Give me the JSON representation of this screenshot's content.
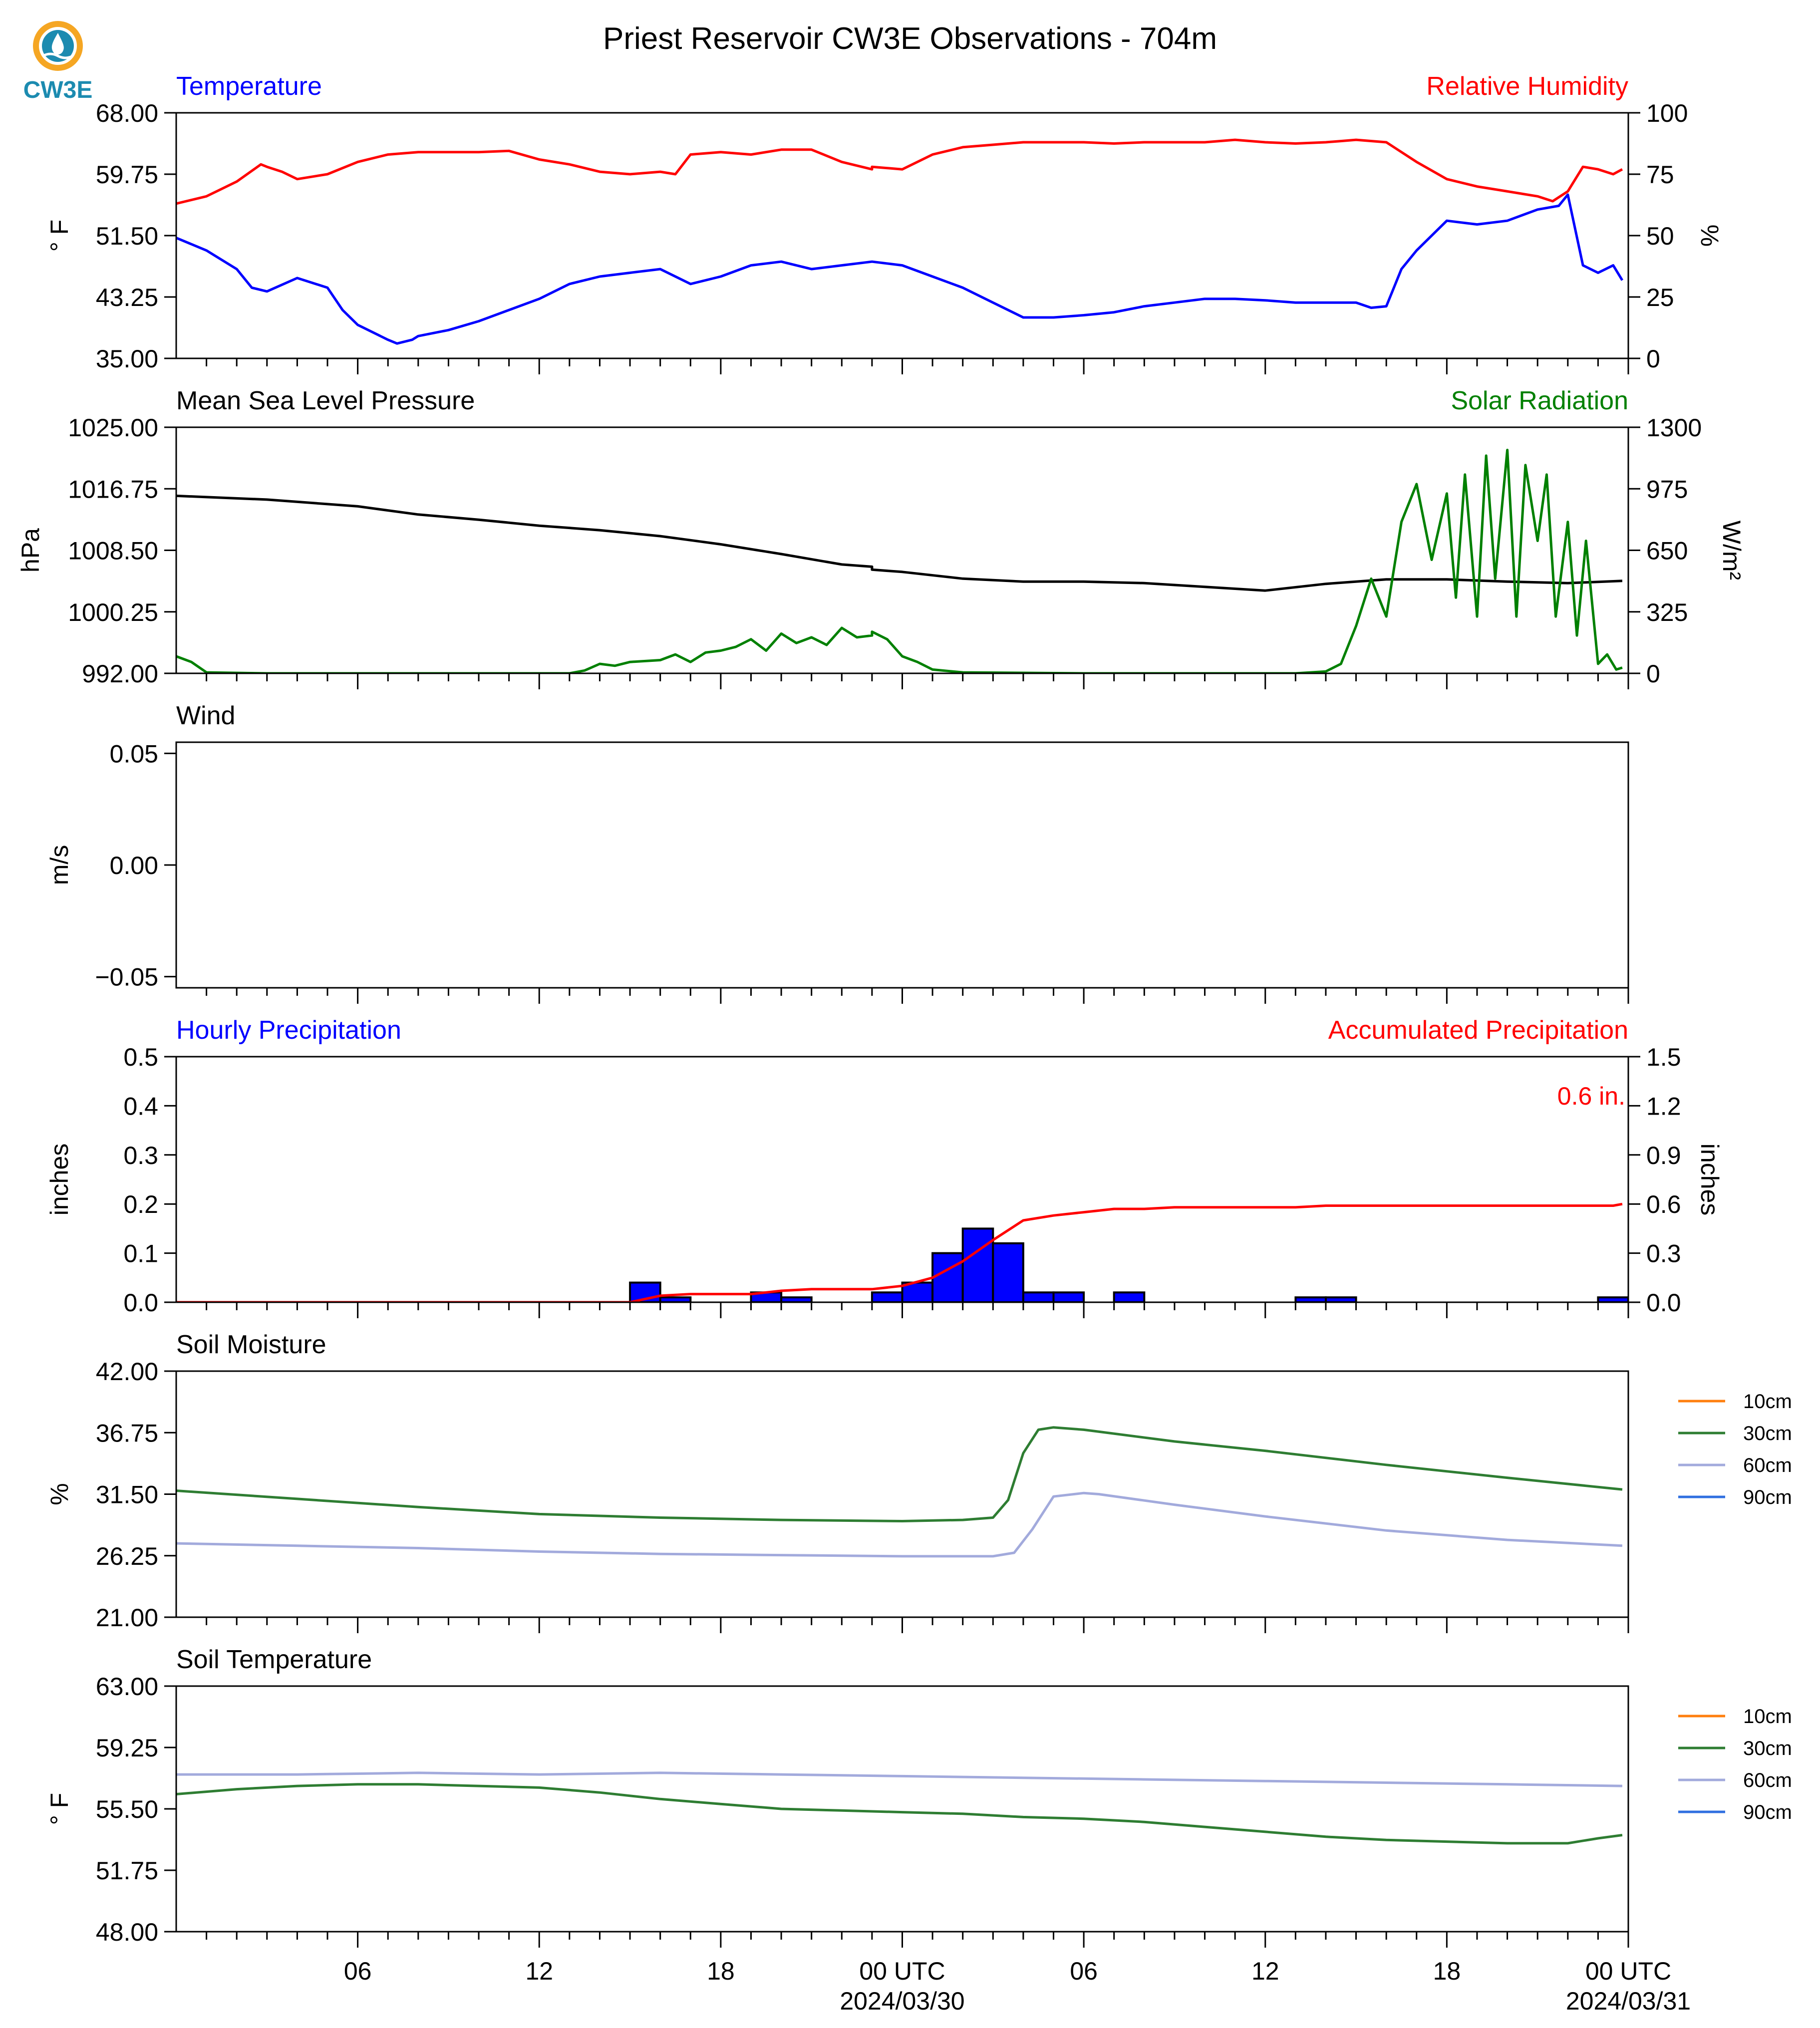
{
  "page": {
    "title": "Priest Reservoir CW3E Observations - 704m",
    "logo_text": "CW3E"
  },
  "colors": {
    "blue": "#0000ff",
    "red": "#ff0000",
    "green": "#008000",
    "black": "#000000",
    "soil_10": "#ff7f0e",
    "soil_30": "#2e7d32",
    "soil_60": "#a2aadc",
    "soil_90": "#2f6fe0",
    "logo_orange": "#f5a623",
    "logo_teal": "#1c8bb0"
  },
  "x_axis": {
    "unit": "hours since 2024/03/29 00 UTC",
    "range": [
      0,
      48
    ],
    "major_ticks": [
      {
        "x": 6,
        "label": "06",
        "date": ""
      },
      {
        "x": 12,
        "label": "12",
        "date": ""
      },
      {
        "x": 18,
        "label": "18",
        "date": ""
      },
      {
        "x": 24,
        "label": "00 UTC",
        "date": "2024/03/30"
      },
      {
        "x": 30,
        "label": "06",
        "date": ""
      },
      {
        "x": 36,
        "label": "12",
        "date": ""
      },
      {
        "x": 42,
        "label": "18",
        "date": ""
      },
      {
        "x": 48,
        "label": "00 UTC",
        "date": "2024/03/31"
      }
    ]
  },
  "chart_data": [
    {
      "id": "temp_rh",
      "type": "line",
      "left_title": "Temperature",
      "right_title": "Relative Humidity",
      "ylabel_left": "° F",
      "ylabel_right": "%",
      "ylim_left": [
        35.0,
        68.0
      ],
      "yticks_left": [
        "35.00",
        "43.25",
        "51.50",
        "59.75",
        "68.00"
      ],
      "ylim_right": [
        0,
        100
      ],
      "yticks_right": [
        "0",
        "25",
        "50",
        "75",
        "100"
      ],
      "series": [
        {
          "name": "Temperature",
          "axis": "left",
          "color": "#0000ff",
          "x": [
            0,
            1,
            2,
            2.5,
            3,
            4,
            5,
            5.5,
            6,
            7,
            7.3,
            7.8,
            8,
            9,
            10,
            11,
            12,
            13,
            14,
            15,
            16,
            17,
            18,
            19,
            20,
            21,
            22,
            23,
            23,
            24,
            25,
            26,
            27,
            28,
            29,
            30,
            31,
            32,
            33,
            34,
            35,
            36,
            37,
            38,
            39,
            39.5,
            40,
            40.5,
            41,
            42,
            43,
            44,
            45,
            45.7,
            46,
            46.5,
            47,
            47.5,
            47.8
          ],
          "y": [
            51.2,
            49.5,
            47.0,
            44.5,
            44.0,
            45.8,
            44.5,
            41.5,
            39.5,
            37.5,
            37.0,
            37.5,
            38.0,
            38.8,
            40.0,
            41.5,
            43.0,
            45.0,
            46.0,
            46.5,
            47.0,
            45.0,
            46.0,
            47.5,
            48.0,
            47.0,
            47.5,
            48.0,
            48.0,
            47.5,
            46.0,
            44.5,
            42.5,
            40.5,
            40.5,
            40.8,
            41.2,
            42.0,
            42.5,
            43.0,
            43.0,
            42.8,
            42.5,
            42.5,
            42.5,
            41.8,
            42.0,
            47.0,
            49.5,
            53.5,
            53.0,
            53.5,
            55.0,
            55.5,
            57.0,
            47.5,
            46.5,
            47.5,
            45.5
          ]
        },
        {
          "name": "Relative Humidity",
          "axis": "right",
          "color": "#ff0000",
          "x": [
            0,
            1,
            2,
            2.8,
            3,
            3.5,
            4,
            5,
            6,
            7,
            8,
            9,
            10,
            11,
            12,
            13,
            14,
            15,
            16,
            16.5,
            17,
            18,
            19,
            20,
            21,
            22,
            23,
            23,
            24,
            25,
            26,
            27,
            28,
            29,
            30,
            31,
            32,
            33,
            34,
            35,
            36,
            37,
            38,
            38.5,
            39,
            40,
            41,
            42,
            43,
            44,
            45,
            45.5,
            46,
            46.5,
            47,
            47.5,
            47.8
          ],
          "y": [
            63,
            66,
            72,
            79,
            78,
            76,
            73,
            75,
            80,
            83,
            84,
            84,
            84,
            84.5,
            81,
            79,
            76,
            75,
            76,
            75,
            83,
            84,
            83,
            85,
            85,
            80,
            77,
            78,
            77,
            83,
            86,
            87,
            88,
            88,
            88,
            87.5,
            88,
            88,
            88,
            89,
            88,
            87.5,
            88,
            88.5,
            89,
            88,
            80,
            73,
            70,
            68,
            66,
            64,
            68,
            78,
            77,
            75,
            77
          ]
        }
      ]
    },
    {
      "id": "pressure_solar",
      "type": "line",
      "left_title": "Mean Sea Level Pressure",
      "right_title": "Solar Radiation",
      "ylabel_left": "hPa",
      "ylabel_right": "W/m²",
      "ylim_left": [
        992.0,
        1025.0
      ],
      "yticks_left": [
        "992.00",
        "1000.25",
        "1008.50",
        "1016.75",
        "1025.00"
      ],
      "ylim_right": [
        0,
        1300
      ],
      "yticks_right": [
        "0",
        "325",
        "650",
        "975",
        "1300"
      ],
      "series": [
        {
          "name": "Mean Sea Level Pressure",
          "axis": "left",
          "color": "#000000",
          "x": [
            0,
            3,
            6,
            8,
            10,
            12,
            14,
            16,
            18,
            20,
            22,
            23,
            23,
            24,
            26,
            28,
            30,
            32,
            34,
            36,
            38,
            40,
            42,
            44,
            46,
            47.8
          ],
          "y": [
            1015.8,
            1015.3,
            1014.4,
            1013.3,
            1012.6,
            1011.8,
            1011.2,
            1010.4,
            1009.3,
            1008.0,
            1006.6,
            1006.3,
            1005.9,
            1005.6,
            1004.7,
            1004.3,
            1004.3,
            1004.1,
            1003.6,
            1003.1,
            1004.0,
            1004.6,
            1004.6,
            1004.3,
            1004.1,
            1004.4
          ]
        },
        {
          "name": "Solar Radiation",
          "axis": "right",
          "color": "#008000",
          "x": [
            0,
            0.5,
            1,
            3,
            6,
            9,
            12,
            13,
            13.5,
            14,
            14.5,
            15,
            16,
            16.5,
            17,
            17.5,
            18,
            18.5,
            19,
            19.5,
            20,
            20.5,
            21,
            21.5,
            22,
            22.5,
            23,
            23,
            23.5,
            24,
            24.5,
            25,
            26,
            30,
            35,
            37,
            38,
            38.5,
            39,
            39.5,
            40,
            40.5,
            41,
            41.5,
            42,
            42.3,
            42.6,
            43,
            43.3,
            43.6,
            44,
            44.3,
            44.6,
            45,
            45.3,
            45.6,
            46,
            46.3,
            46.6,
            47,
            47.3,
            47.6,
            47.8
          ],
          "y": [
            90,
            60,
            5,
            0,
            0,
            0,
            0,
            0,
            15,
            50,
            40,
            60,
            70,
            100,
            60,
            110,
            120,
            140,
            180,
            120,
            210,
            160,
            190,
            150,
            240,
            190,
            200,
            220,
            180,
            90,
            60,
            20,
            5,
            0,
            0,
            0,
            10,
            50,
            250,
            500,
            300,
            800,
            1000,
            600,
            950,
            400,
            1050,
            300,
            1150,
            500,
            1180,
            300,
            1100,
            700,
            1050,
            300,
            800,
            200,
            700,
            50,
            100,
            20,
            30
          ]
        }
      ]
    },
    {
      "id": "wind",
      "type": "line",
      "left_title": "Wind",
      "right_title": "",
      "ylabel_left": "m/s",
      "ylabel_right": "",
      "ylim_left": [
        -0.055,
        0.055
      ],
      "yticks_left": [
        "−0.05",
        "0.00",
        "0.05"
      ],
      "yticks_left_values": [
        -0.05,
        0.0,
        0.05
      ],
      "series": []
    },
    {
      "id": "precip",
      "type": "bar",
      "left_title": "Hourly Precipitation",
      "right_title": "Accumulated Precipitation",
      "annotation": "0.6 in.",
      "ylabel_left": "inches",
      "ylabel_right": "inches",
      "ylim_left": [
        0,
        0.5
      ],
      "yticks_left": [
        "0.0",
        "0.1",
        "0.2",
        "0.3",
        "0.4",
        "0.5"
      ],
      "ylim_right": [
        0,
        1.5
      ],
      "yticks_right": [
        "0.0",
        "0.3",
        "0.6",
        "0.9",
        "1.2",
        "1.5"
      ],
      "bars": {
        "name": "Hourly Precipitation",
        "color": "#0000ff",
        "x": [
          15,
          16,
          19,
          20,
          23,
          24,
          25,
          26,
          27,
          28,
          29,
          31,
          37,
          38,
          47
        ],
        "values": [
          0.04,
          0.01,
          0.02,
          0.01,
          0.02,
          0.04,
          0.1,
          0.15,
          0.12,
          0.02,
          0.02,
          0.02,
          0.01,
          0.01,
          0.01
        ]
      },
      "series": [
        {
          "name": "Accumulated Precipitation",
          "axis": "right",
          "color": "#ff0000",
          "x": [
            0,
            15,
            16,
            17,
            19,
            20,
            21,
            22,
            23,
            23,
            24,
            25,
            26,
            27,
            28,
            29,
            30,
            31,
            32,
            33,
            37,
            38,
            47,
            47.5,
            47.8
          ],
          "y": [
            0,
            0,
            0.04,
            0.05,
            0.05,
            0.07,
            0.08,
            0.08,
            0.08,
            0.08,
            0.1,
            0.15,
            0.25,
            0.38,
            0.5,
            0.53,
            0.55,
            0.57,
            0.57,
            0.58,
            0.58,
            0.59,
            0.59,
            0.59,
            0.6
          ]
        }
      ]
    },
    {
      "id": "soil_moisture",
      "type": "line",
      "left_title": "Soil Moisture",
      "right_title": "",
      "ylabel_left": "%",
      "ylabel_right": "",
      "ylim_left": [
        21.0,
        42.0
      ],
      "yticks_left": [
        "21.00",
        "26.25",
        "31.50",
        "36.75",
        "42.00"
      ],
      "legend": [
        "10cm",
        "30cm",
        "60cm",
        "90cm"
      ],
      "legend_colors": [
        "#ff7f0e",
        "#2e7d32",
        "#a2aadc",
        "#2f6fe0"
      ],
      "series": [
        {
          "name": "30cm",
          "axis": "left",
          "color": "#2e7d32",
          "x": [
            0,
            4,
            8,
            12,
            16,
            20,
            24,
            26,
            27,
            27.5,
            28,
            28.5,
            29,
            30,
            33,
            36,
            40,
            44,
            47.8
          ],
          "y": [
            31.8,
            31.1,
            30.4,
            29.8,
            29.5,
            29.3,
            29.2,
            29.3,
            29.5,
            31.0,
            35.0,
            37.0,
            37.2,
            37.0,
            36.0,
            35.2,
            34.0,
            32.9,
            31.9
          ]
        },
        {
          "name": "60cm",
          "axis": "left",
          "color": "#a2aadc",
          "x": [
            0,
            4,
            8,
            12,
            16,
            20,
            24,
            26,
            27,
            27.7,
            28.3,
            29,
            30,
            30.5,
            33,
            36,
            40,
            44,
            47.8
          ],
          "y": [
            27.3,
            27.1,
            26.9,
            26.6,
            26.4,
            26.3,
            26.2,
            26.2,
            26.2,
            26.5,
            28.5,
            31.3,
            31.6,
            31.5,
            30.6,
            29.6,
            28.4,
            27.6,
            27.1
          ]
        }
      ]
    },
    {
      "id": "soil_temperature",
      "type": "line",
      "left_title": "Soil Temperature",
      "right_title": "",
      "ylabel_left": "° F",
      "ylabel_right": "",
      "ylim_left": [
        48.0,
        63.0
      ],
      "yticks_left": [
        "48.00",
        "51.75",
        "55.50",
        "59.25",
        "63.00"
      ],
      "legend": [
        "10cm",
        "30cm",
        "60cm",
        "90cm"
      ],
      "legend_colors": [
        "#ff7f0e",
        "#2e7d32",
        "#a2aadc",
        "#2f6fe0"
      ],
      "series": [
        {
          "name": "30cm",
          "axis": "left",
          "color": "#2e7d32",
          "x": [
            0,
            2,
            4,
            6,
            8,
            10,
            12,
            14,
            16,
            18,
            20,
            22,
            24,
            26,
            28,
            30,
            32,
            34,
            36,
            38,
            40,
            42,
            44,
            46,
            47,
            47.8
          ],
          "y": [
            56.4,
            56.7,
            56.9,
            57.0,
            57.0,
            56.9,
            56.8,
            56.5,
            56.1,
            55.8,
            55.5,
            55.4,
            55.3,
            55.2,
            55.0,
            54.9,
            54.7,
            54.4,
            54.1,
            53.8,
            53.6,
            53.5,
            53.4,
            53.4,
            53.7,
            53.9
          ]
        },
        {
          "name": "60cm",
          "axis": "left",
          "color": "#a2aadc",
          "x": [
            0,
            4,
            8,
            12,
            16,
            20,
            24,
            28,
            32,
            36,
            40,
            44,
            47.8
          ],
          "y": [
            57.6,
            57.6,
            57.7,
            57.6,
            57.7,
            57.6,
            57.5,
            57.4,
            57.3,
            57.2,
            57.1,
            57.0,
            56.9
          ]
        }
      ]
    }
  ]
}
